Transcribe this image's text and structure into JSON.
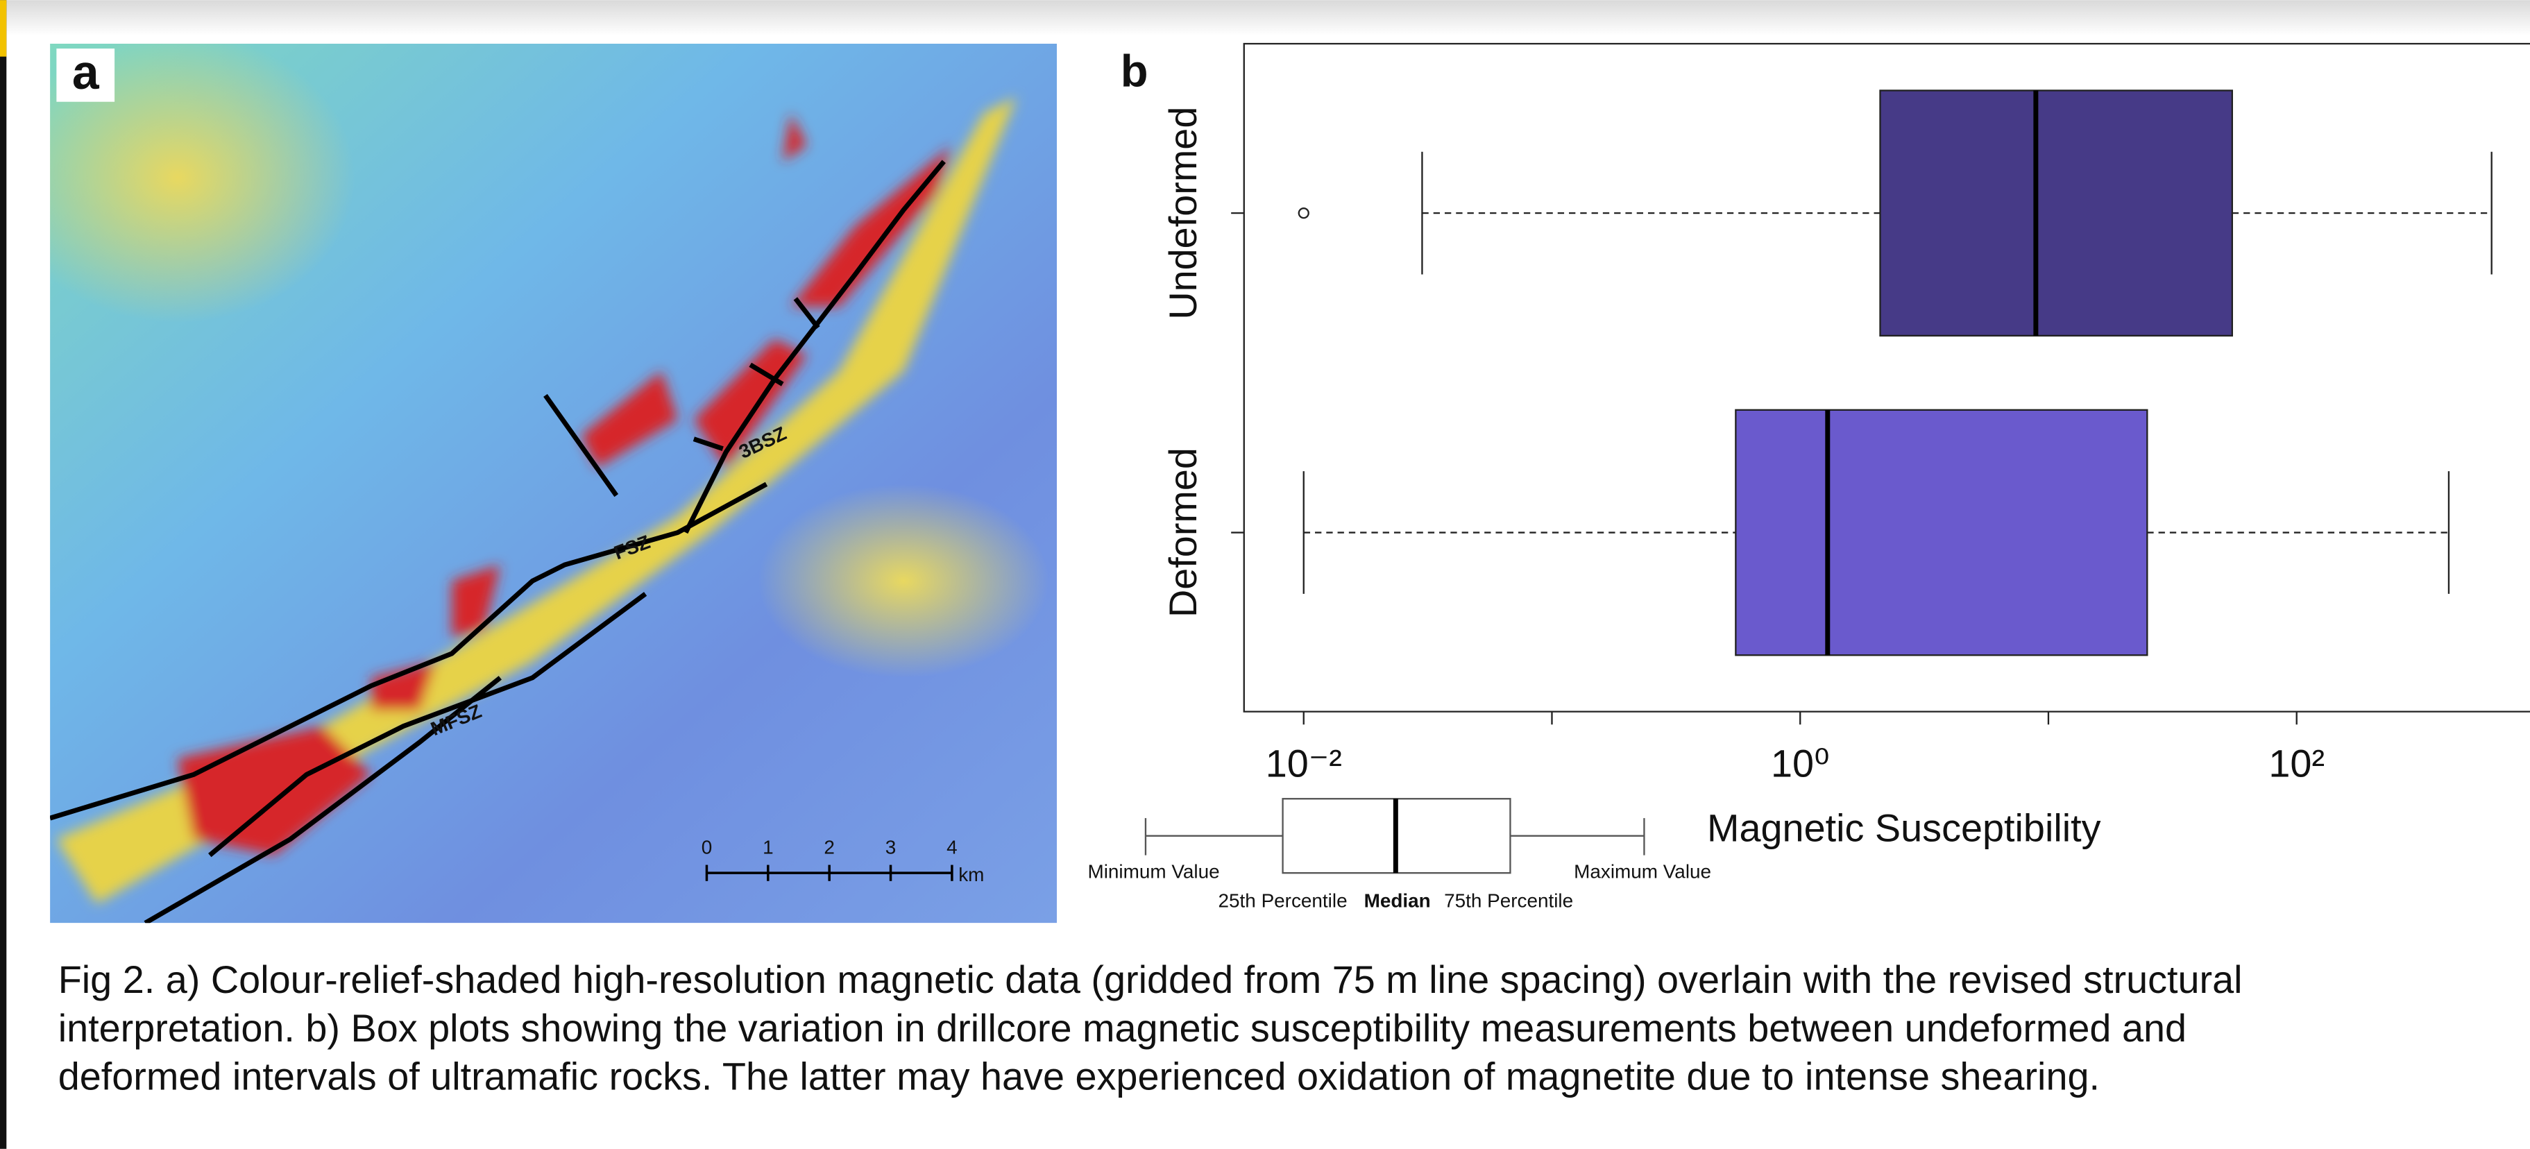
{
  "panel_labels": [
    "a",
    "b"
  ],
  "map": {
    "labels": [
      "3BSZ",
      "FSZ",
      "MFSZ"
    ],
    "scale_labels": [
      "0",
      "1",
      "2",
      "3",
      "4"
    ],
    "scale_unit": "km"
  },
  "chart_data": {
    "type": "box",
    "categories": [
      "Undeformed",
      "Deformed"
    ],
    "colors": [
      "#463a87",
      "#6a5acd"
    ],
    "stats": [
      {
        "min": 0.03,
        "q1": 2.1,
        "median": 8.9,
        "q3": 55,
        "max": 610,
        "outliers": [
          0.01
        ]
      },
      {
        "min": 0.01,
        "q1": 0.55,
        "median": 1.29,
        "q3": 25,
        "max": 410
      }
    ],
    "xlabel": "Magnetic Susceptibility",
    "xscale": "log",
    "xlim": [
      0.00575,
      871
    ],
    "xticks": [
      {
        "value": 0.01,
        "label": "10⁻²"
      },
      {
        "value": 1,
        "label": "10⁰"
      },
      {
        "value": 100,
        "label": "10²"
      }
    ],
    "xminor_ticks": [
      0.1,
      10
    ]
  },
  "box_key": {
    "min": "Minimum Value",
    "max": "Maximum Value",
    "q1": "25th Percentile",
    "median": "Median",
    "q3": "75th Percentile"
  },
  "caption": [
    "Fig 2. a) Colour-relief-shaded high-resolution magnetic data (gridded from 75 m line spacing) overlain with the revised structural",
    "interpretation. b) Box plots showing the variation in drillcore magnetic susceptibility measurements between undeformed and",
    "deformed intervals of ultramafic rocks. The latter may have experienced oxidation of magnetite due to intense shearing."
  ]
}
